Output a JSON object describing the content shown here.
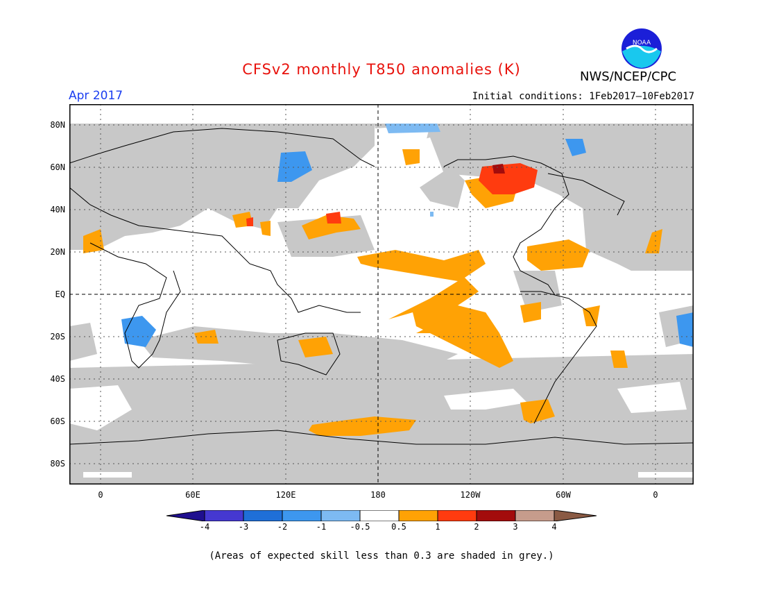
{
  "title": "CFSv2 monthly T850 anomalies (K)",
  "agency": "NWS/NCEP/CPC",
  "logo_text": "NOAA",
  "period": "Apr 2017",
  "initial_conditions": "Initial conditions: 1Feb2017—10Feb2017",
  "lat_labels": [
    "80N",
    "60N",
    "40N",
    "20N",
    "EQ",
    "20S",
    "40S",
    "60S",
    "80S"
  ],
  "lon_labels": [
    "0",
    "60E",
    "120E",
    "180",
    "120W",
    "60W",
    "0"
  ],
  "colorbar": {
    "labels": [
      "-4",
      "-3",
      "-2",
      "-1",
      "-0.5",
      "0.5",
      "1",
      "2",
      "3",
      "4"
    ],
    "colors": [
      "#1f0f8f",
      "#4538d1",
      "#1f6fd8",
      "#3d97ef",
      "#7dbaf2",
      "#ffffff",
      "#ffa205",
      "#ff3b0f",
      "#a30c0c",
      "#c69c8c",
      "#8a5a44"
    ]
  },
  "skill_shading_color": "#c8c8c8",
  "note": "(Areas of expected skill less than 0.3 are shaded in grey.)"
}
